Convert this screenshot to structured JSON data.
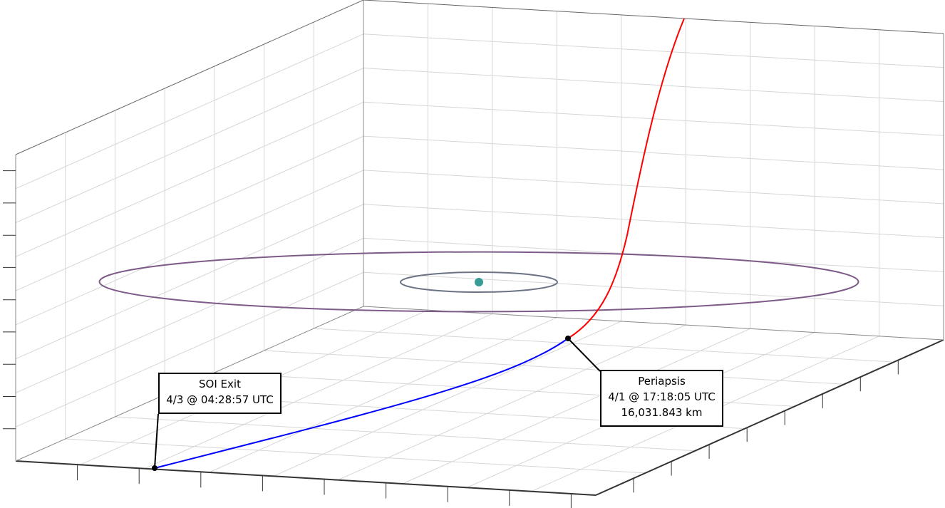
{
  "chart_data": {
    "type": "line",
    "view": "3d",
    "grid": true,
    "series": [
      {
        "role": "approach-trajectory",
        "color": "#ff0000"
      },
      {
        "role": "departure-trajectory",
        "color": "#0000ff"
      },
      {
        "role": "outer-orbit",
        "color": "#7d5a88"
      },
      {
        "role": "inner-orbit",
        "color": "#6b7285"
      }
    ],
    "central_body": {
      "color": "#3a9a94"
    },
    "annotations": [
      {
        "id": "soi_exit",
        "lines": [
          "SOI Exit",
          "4/3 @ 04:28:57 UTC"
        ]
      },
      {
        "id": "periapsis",
        "lines": [
          "Periapsis",
          "4/1 @ 17:18:05 UTC",
          "16,031.843 km"
        ]
      }
    ]
  }
}
